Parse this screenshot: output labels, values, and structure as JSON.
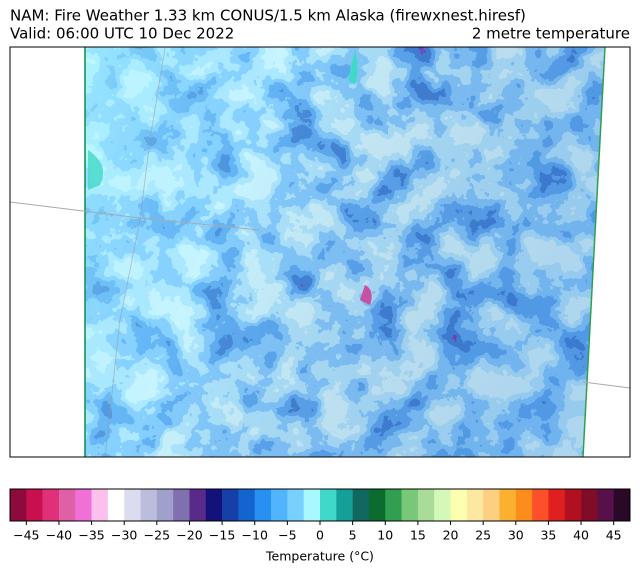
{
  "header": {
    "title": "NAM: Fire Weather 1.33 km CONUS/1.5 km Alaska (firewxnest.hiresf)",
    "valid": "Valid: 06:00 UTC 10 Dec 2022",
    "field": "2 metre temperature"
  },
  "colorbar": {
    "label": "Temperature (°C)",
    "lim": [
      -47.5,
      47.5
    ],
    "ticks": [
      {
        "value": -45,
        "label": "−45"
      },
      {
        "value": -40,
        "label": "−40"
      },
      {
        "value": -35,
        "label": "−35"
      },
      {
        "value": -30,
        "label": "−30"
      },
      {
        "value": -25,
        "label": "−25"
      },
      {
        "value": -20,
        "label": "−20"
      },
      {
        "value": -15,
        "label": "−15"
      },
      {
        "value": -10,
        "label": "−10"
      },
      {
        "value": -5,
        "label": "−5"
      },
      0,
      5,
      10,
      15,
      20,
      25,
      30,
      35,
      40,
      45
    ],
    "colors": [
      "#8c0a3c",
      "#c8104e",
      "#e0307a",
      "#e060a8",
      "#f070d8",
      "#fcc0ec",
      "#ffffff",
      "#dcdcf0",
      "#bcbcdc",
      "#a0a0cc",
      "#8070b0",
      "#5a2a8a",
      "#12127a",
      "#1440a8",
      "#1464d0",
      "#2890f0",
      "#50b4ff",
      "#78d0ff",
      "#a8f8ff",
      "#40d8c8",
      "#14a098",
      "#106860",
      "#0c6c30",
      "#30a050",
      "#78c878",
      "#a8dc98",
      "#d4f8b8",
      "#fcffb0",
      "#fce8a0",
      "#fcd080",
      "#fcb030",
      "#fc8c1c",
      "#fc5028",
      "#e02020",
      "#b01020",
      "#800c28",
      "#58104a",
      "#2a0828"
    ]
  }
}
